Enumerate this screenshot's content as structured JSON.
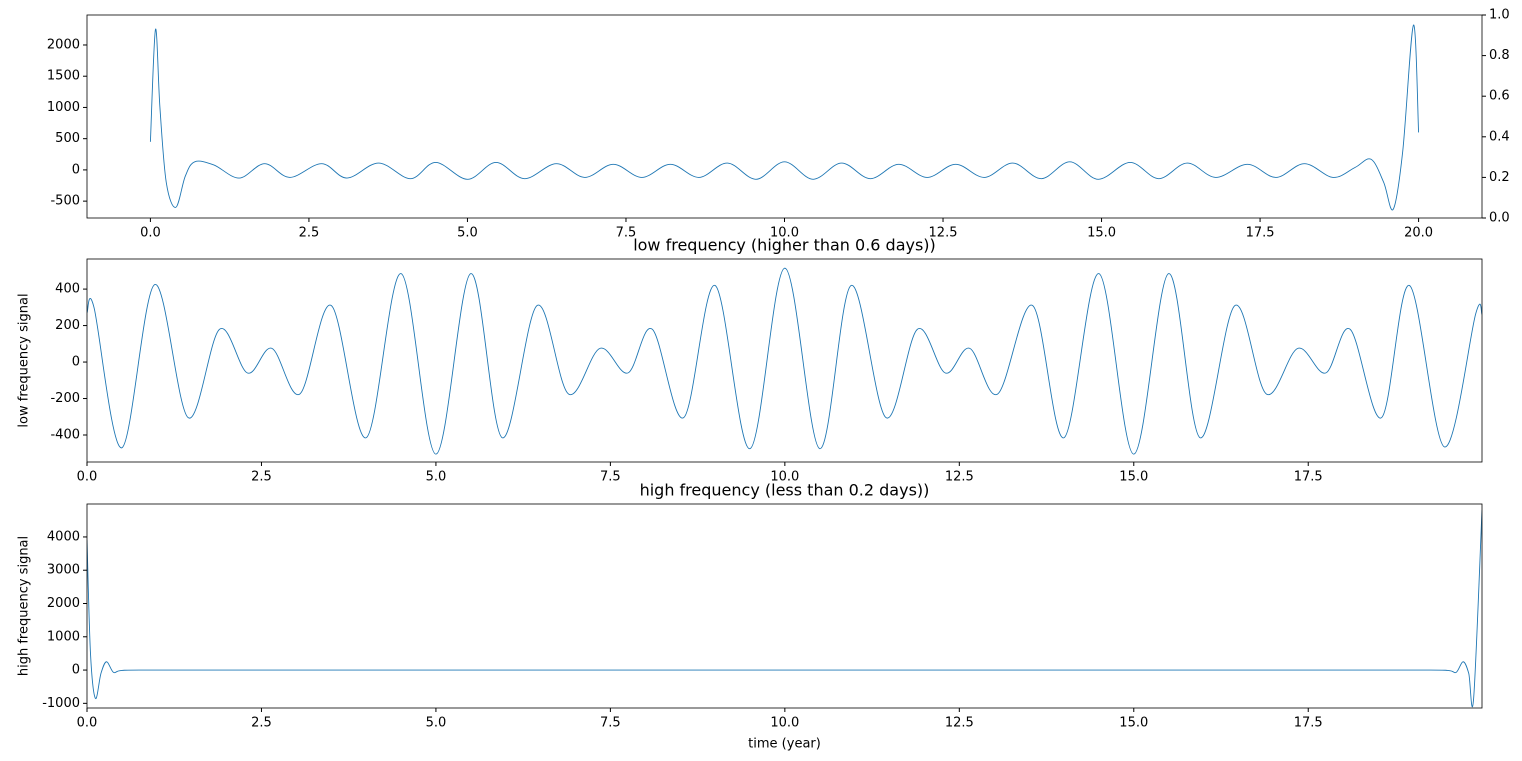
{
  "chart_data": [
    {
      "type": "line",
      "color": "#1f77b4",
      "xlim": [
        -1,
        21
      ],
      "ylim": [
        -770,
        2480
      ],
      "y2lim": [
        0,
        1
      ],
      "xticks": [
        {
          "value": 0,
          "label": "0.0"
        },
        2.5,
        {
          "value": 5,
          "label": "5.0"
        },
        7.5,
        {
          "value": 10,
          "label": "10.0"
        },
        12.5,
        {
          "value": 15,
          "label": "15.0"
        },
        17.5,
        {
          "value": 20,
          "label": "20.0"
        }
      ],
      "yticks": [
        -500,
        0,
        500,
        1000,
        1500,
        2000
      ],
      "y2ticks": [
        {
          "value": 0,
          "label": "0.0"
        },
        0.2,
        0.4,
        0.6,
        0.8,
        {
          "value": 1,
          "label": "1.0"
        }
      ],
      "x": [
        0,
        0.08,
        0.15,
        0.25,
        0.4,
        0.55,
        0.7,
        1.0,
        1.4,
        1.8,
        2.2,
        2.7,
        3.1,
        3.6,
        4.1,
        4.5,
        5.0,
        5.45,
        5.9,
        6.4,
        6.85,
        7.3,
        7.75,
        8.2,
        8.65,
        9.1,
        9.55,
        10.0,
        10.45,
        10.9,
        11.35,
        11.8,
        12.25,
        12.7,
        13.15,
        13.6,
        14.05,
        14.5,
        14.95,
        15.45,
        15.9,
        16.35,
        16.8,
        17.3,
        17.75,
        18.2,
        18.65,
        19.0,
        19.25,
        19.45,
        19.6,
        19.75,
        19.92,
        20.0
      ],
      "values": [
        450,
        2250,
        1000,
        -200,
        -600,
        -100,
        130,
        80,
        -130,
        100,
        -120,
        100,
        -130,
        110,
        -140,
        120,
        -150,
        120,
        -140,
        100,
        -120,
        90,
        -120,
        90,
        -120,
        110,
        -150,
        130,
        -150,
        110,
        -140,
        90,
        -120,
        90,
        -120,
        110,
        -140,
        130,
        -150,
        120,
        -140,
        110,
        -120,
        90,
        -120,
        100,
        -120,
        40,
        170,
        -200,
        -630,
        300,
        2320,
        600
      ]
    },
    {
      "type": "line",
      "color": "#1f77b4",
      "title": "low frequency (higher than 0.6 days))",
      "ylabel": "low frequency signal",
      "xlim": [
        0,
        19.99
      ],
      "ylim": [
        -548,
        565
      ],
      "xticks": [
        {
          "value": 0,
          "label": "0.0"
        },
        2.5,
        {
          "value": 5,
          "label": "5.0"
        },
        7.5,
        {
          "value": 10,
          "label": "10.0"
        },
        12.5,
        {
          "value": 15,
          "label": "15.0"
        },
        17.5
      ],
      "yticks": [
        -400,
        -200,
        0,
        200,
        400
      ],
      "x": [
        0,
        0.1,
        0.5,
        0.97,
        1.45,
        1.9,
        2.3,
        2.65,
        3.05,
        3.5,
        4.0,
        4.5,
        5.0,
        5.5,
        5.95,
        6.45,
        6.9,
        7.35,
        7.75,
        8.1,
        8.55,
        9.0,
        9.5,
        10.0,
        10.5,
        10.95,
        11.45,
        11.9,
        12.3,
        12.65,
        13.05,
        13.55,
        14.0,
        14.5,
        15.0,
        15.5,
        15.95,
        16.45,
        16.9,
        17.35,
        17.75,
        18.1,
        18.55,
        18.95,
        19.45,
        19.9,
        19.99
      ],
      "values": [
        270,
        300,
        -470,
        425,
        -305,
        180,
        -60,
        75,
        -175,
        310,
        -415,
        485,
        -505,
        485,
        -415,
        310,
        -175,
        75,
        -60,
        180,
        -305,
        420,
        -475,
        515,
        -475,
        420,
        -305,
        180,
        -60,
        75,
        -175,
        310,
        -415,
        485,
        -505,
        485,
        -415,
        310,
        -175,
        75,
        -60,
        180,
        -305,
        420,
        -465,
        265,
        260
      ]
    },
    {
      "type": "line",
      "color": "#1f77b4",
      "title": "high frequency (less than 0.2 days))",
      "ylabel": "high frequency signal",
      "xlabel": "time (year)",
      "xlim": [
        0,
        19.99
      ],
      "ylim": [
        -1140,
        4990
      ],
      "xticks": [
        {
          "value": 0,
          "label": "0.0"
        },
        2.5,
        {
          "value": 5,
          "label": "5.0"
        },
        7.5,
        {
          "value": 10,
          "label": "10.0"
        },
        12.5,
        {
          "value": 15,
          "label": "15.0"
        },
        17.5
      ],
      "yticks": [
        -1000,
        0,
        1000,
        2000,
        3000,
        4000
      ],
      "x": [
        0,
        0.05,
        0.12,
        0.2,
        0.28,
        0.38,
        0.5,
        1.0,
        19.0,
        19.5,
        19.62,
        19.72,
        19.8,
        19.87,
        19.99
      ],
      "values": [
        3900,
        500,
        -850,
        -100,
        250,
        -70,
        -10,
        0,
        0,
        -10,
        -70,
        250,
        -100,
        -850,
        4800
      ]
    }
  ]
}
